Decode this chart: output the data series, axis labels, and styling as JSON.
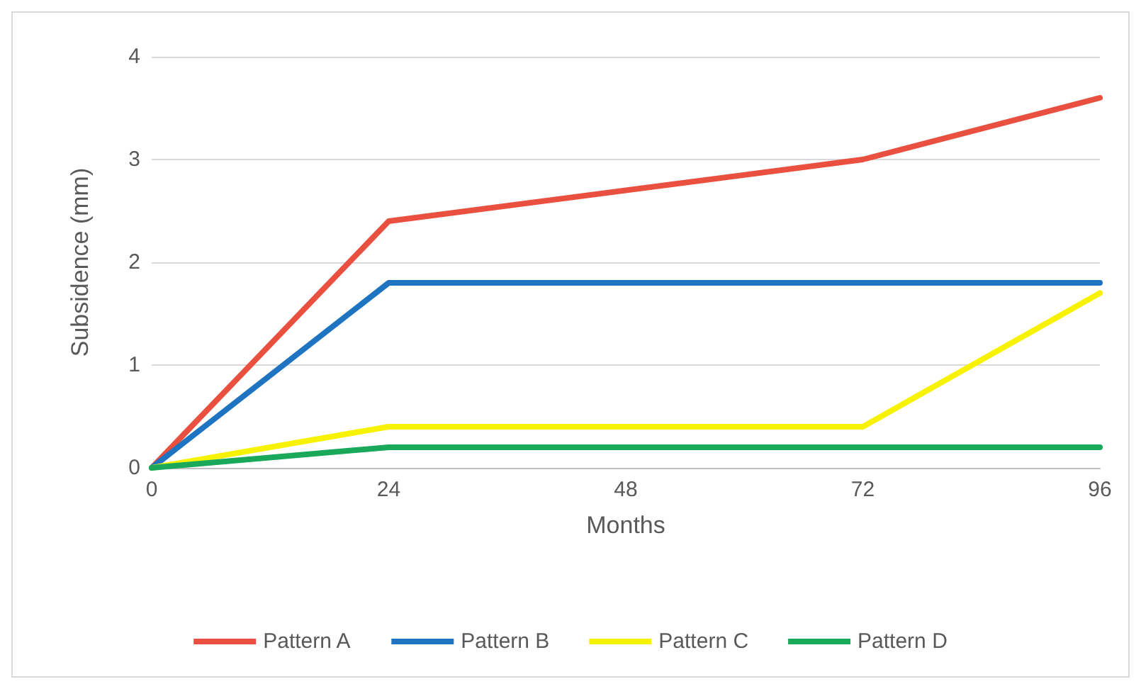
{
  "chart_data": {
    "type": "line",
    "xlabel": "Months",
    "ylabel": "Subsidence (mm)",
    "x": [
      0,
      24,
      72,
      96
    ],
    "xlim": [
      0,
      96
    ],
    "xticks": [
      0,
      24,
      48,
      72,
      96
    ],
    "ylim": [
      0,
      4
    ],
    "yticks": [
      0,
      1,
      2,
      3,
      4
    ],
    "grid": "y",
    "legend": "bottom",
    "marker": "none",
    "line_style": "solid",
    "series": [
      {
        "name": "Pattern A",
        "color": "#e9503f",
        "values": [
          0,
          2.4,
          3.0,
          3.6
        ]
      },
      {
        "name": "Pattern B",
        "color": "#1f74c2",
        "values": [
          0,
          1.8,
          1.8,
          1.8
        ]
      },
      {
        "name": "Pattern C",
        "color": "#f7f200",
        "values": [
          0,
          0.4,
          0.4,
          1.7
        ]
      },
      {
        "name": "Pattern D",
        "color": "#1aa85a",
        "values": [
          0,
          0.2,
          0.2,
          0.2
        ]
      }
    ]
  }
}
